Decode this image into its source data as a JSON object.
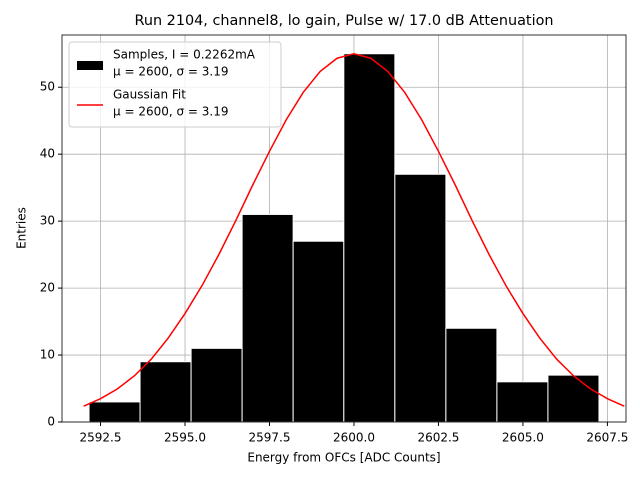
{
  "chart_data": {
    "type": "histogram",
    "title": "Run 2104, channel8, lo gain, Pulse w/ 17.0 dB Attenuation",
    "xlabel": "Energy from OFCs [ADC Counts]",
    "ylabel": "Entries",
    "bins": [
      2592.16,
      2593.67,
      2595.18,
      2596.69,
      2598.2,
      2599.7,
      2601.21,
      2602.72,
      2604.23,
      2605.74,
      2607.25
    ],
    "counts": [
      3,
      9,
      11,
      31,
      27,
      55,
      37,
      14,
      6,
      7
    ],
    "hist_name": [
      "Samples, I = 0.2262mA",
      "μ = 2600, σ = 3.19"
    ],
    "hist_color": "#000000",
    "fit": {
      "name": [
        "Gaussian Fit",
        "μ = 2600, σ = 3.19"
      ],
      "color": "#ff0000",
      "x": [
        2592,
        2592.5,
        2593,
        2593.5,
        2594,
        2594.5,
        2595,
        2595.5,
        2596,
        2596.5,
        2597,
        2597.5,
        2598,
        2598.5,
        2599,
        2599.5,
        2600,
        2600.5,
        2601,
        2601.5,
        2602,
        2602.5,
        2603,
        2603.5,
        2604,
        2604.5,
        2605,
        2605.5,
        2606,
        2606.5,
        2607,
        2607.5,
        2608
      ],
      "values": [
        2.37,
        3.48,
        4.95,
        6.89,
        9.38,
        12.52,
        16.2,
        20.34,
        25.0,
        30.05,
        35.36,
        40.43,
        45.18,
        49.24,
        52.36,
        54.33,
        55,
        54.33,
        52.36,
        49.24,
        45.18,
        40.43,
        35.36,
        30.05,
        25.0,
        20.34,
        16.2,
        12.52,
        9.38,
        6.89,
        4.95,
        3.48,
        2.37
      ]
    },
    "xlim": [
      2591.36,
      2608.05
    ],
    "ylim": [
      0,
      57.8
    ],
    "xticks": [
      {
        "value": 2592.5,
        "label": "2592.5"
      },
      {
        "value": 2595,
        "label": "2595.0"
      },
      {
        "value": 2597.5,
        "label": "2597.5"
      },
      {
        "value": 2600,
        "label": "2600.0"
      },
      {
        "value": 2602.5,
        "label": "2602.5"
      },
      {
        "value": 2605,
        "label": "2605.0"
      },
      {
        "value": 2607.5,
        "label": "2607.5"
      }
    ],
    "yticks": [
      0,
      10,
      20,
      30,
      40,
      50
    ],
    "grid": true,
    "legend": "upper left"
  }
}
